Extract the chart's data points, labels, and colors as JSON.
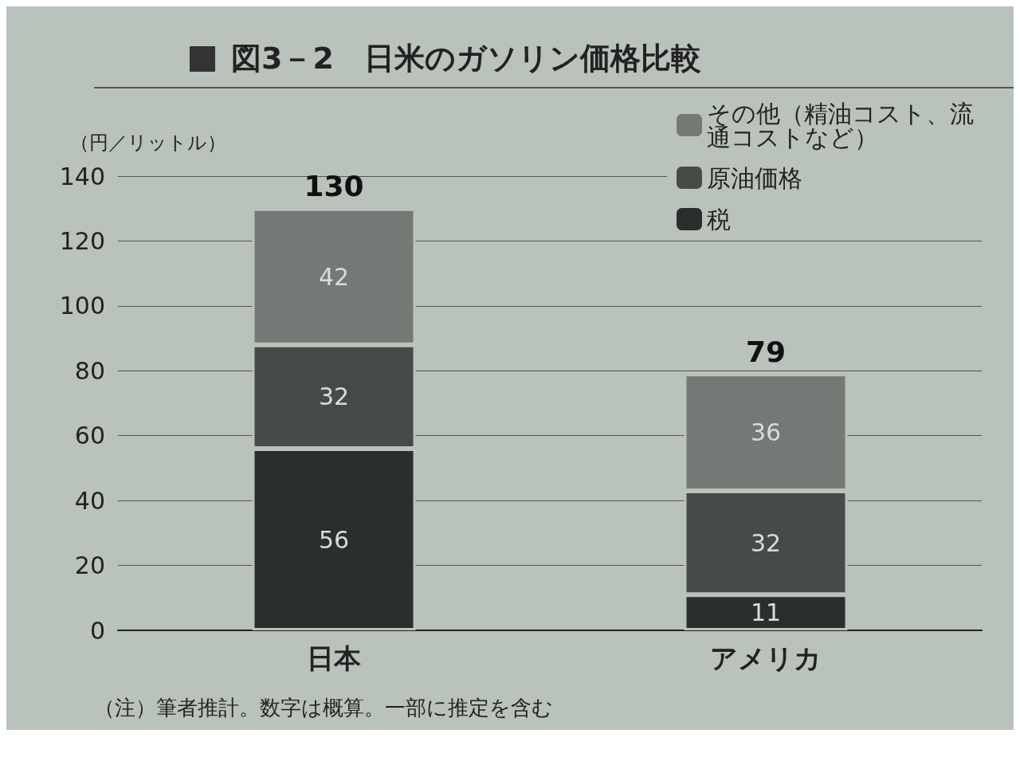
{
  "chart_data": {
    "type": "bar",
    "title": "図3－2　日米のガソリン価格比較",
    "ylabel": "（円／リットル）",
    "categories": [
      "日本",
      "アメリカ"
    ],
    "series": [
      {
        "name": "税",
        "color": "#2a2e2c",
        "values": [
          56,
          11
        ]
      },
      {
        "name": "原油価格",
        "color": "#464b48",
        "values": [
          32,
          32
        ]
      },
      {
        "name": "その他（精油コスト、流通コストなど）",
        "color": "#737a76",
        "values": [
          42,
          36
        ]
      }
    ],
    "stacked": true,
    "totals": [
      "130",
      "79"
    ],
    "data_labels": true,
    "ylim": [
      0,
      140
    ],
    "yticks": [
      0,
      20,
      40,
      60,
      80,
      100,
      120,
      140
    ],
    "grid": "y",
    "legend": "top right",
    "annotations": [
      "（注）筆者推計。数字は概算。一部に推定を含む"
    ]
  }
}
